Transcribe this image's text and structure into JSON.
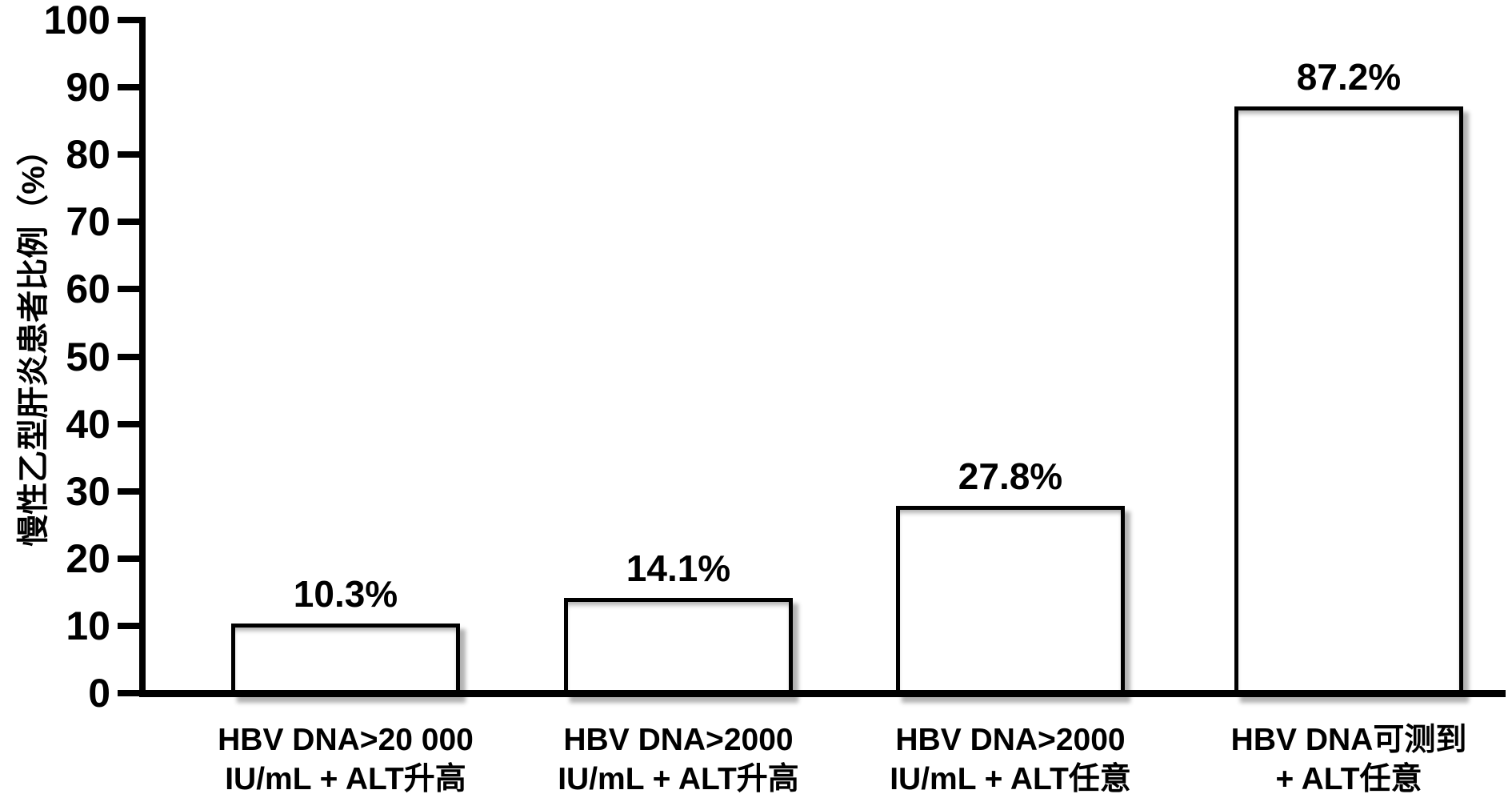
{
  "chart_data": {
    "type": "bar",
    "title": "",
    "ylabel": "慢性乙型肝炎患者比例（%）",
    "xlabel": "",
    "ylim": [
      0,
      100
    ],
    "yticks": [
      0,
      10,
      20,
      30,
      40,
      50,
      60,
      70,
      80,
      90,
      100
    ],
    "grid": false,
    "legend": "none",
    "categories": [
      "HBV DNA>20 000 IU/mL + ALT升高",
      "HBV DNA>2000 IU/mL + ALT升高",
      "HBV DNA>2000 IU/mL + ALT任意",
      "HBV DNA可测到 + ALT任意"
    ],
    "values": [
      10.3,
      14.1,
      27.8,
      87.2
    ],
    "bars": [
      {
        "value": 10.3,
        "label": "10.3%",
        "category_line1": "HBV DNA>20 000",
        "category_line2": "IU/mL + ALT升高"
      },
      {
        "value": 14.1,
        "label": "14.1%",
        "category_line1": "HBV DNA>2000",
        "category_line2": "IU/mL + ALT升高"
      },
      {
        "value": 27.8,
        "label": "27.8%",
        "category_line1": "HBV DNA>2000",
        "category_line2": "IU/mL + ALT任意"
      },
      {
        "value": 87.2,
        "label": "87.2%",
        "category_line1": "HBV DNA可测到",
        "category_line2": "+ ALT任意"
      }
    ],
    "colors": {
      "background": "#ffffff",
      "bar_fill": "#ffffff",
      "bar_border": "#000000",
      "axis": "#000000",
      "text": "#000000"
    }
  }
}
